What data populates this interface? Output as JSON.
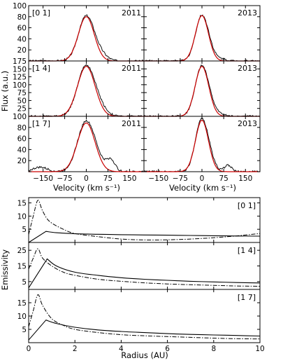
{
  "chart_data": [
    {
      "type": "line",
      "id": "line-profiles",
      "xlabel": "Velocity (km s⁻¹)",
      "ylabel": "Flux (a.u.)",
      "xlim": [
        -200,
        200
      ],
      "xticks": [
        -150,
        -75,
        0,
        75,
        150
      ],
      "years": [
        "2011",
        "2013"
      ],
      "rows": [
        {
          "label": "[0 1]",
          "ylim": [
            0,
            100
          ],
          "yticks": [
            0,
            20,
            40,
            60,
            80,
            100
          ],
          "panels": [
            {
              "year": "2011",
              "peak": 82,
              "width": 27,
              "model_peak": 80,
              "bumps": [
                [
                  60,
                  5,
                  20
                ]
              ]
            },
            {
              "year": "2013",
              "peak": 83,
              "width": 22,
              "model_peak": 82,
              "bumps": [
                [
                  70,
                  3,
                  15
                ]
              ]
            }
          ]
        },
        {
          "label": "[1 4]",
          "ylim": [
            0,
            175
          ],
          "yticks": [
            0,
            25,
            50,
            75,
            100,
            125,
            150,
            175
          ],
          "panels": [
            {
              "year": "2011",
              "peak": 162,
              "width": 30,
              "model_peak": 158,
              "bumps": [
                [
                  60,
                  5,
                  20
                ]
              ]
            },
            {
              "year": "2013",
              "peak": 160,
              "width": 23,
              "model_peak": 158,
              "bumps": [
                [
                  70,
                  4,
                  15
                ]
              ]
            }
          ]
        },
        {
          "label": "[1 7]",
          "ylim": [
            0,
            100
          ],
          "yticks": [
            0,
            20,
            40,
            60,
            80,
            100
          ],
          "panels": [
            {
              "year": "2011",
              "peak": 92,
              "width": 30,
              "model_peak": 88,
              "bumps": [
                [
                  85,
                  20,
                  15
                ],
                [
                  -160,
                  8,
                  25
                ]
              ]
            },
            {
              "year": "2013",
              "peak": 96,
              "width": 22,
              "model_peak": 93,
              "bumps": [
                [
                  90,
                  12,
                  12
                ]
              ]
            }
          ]
        }
      ],
      "series_colors": {
        "data": "#111111",
        "model": "#cc0000"
      }
    },
    {
      "type": "line",
      "id": "emissivity",
      "xlabel": "Radius (AU)",
      "ylabel": "Emissivity",
      "xlim": [
        0,
        10
      ],
      "xticks": [
        0,
        2,
        4,
        6,
        8,
        10
      ],
      "rows": [
        {
          "label": "[0 1]",
          "ylim": [
            0,
            17
          ],
          "yticks": [
            5,
            10,
            15
          ],
          "solid": [
            [
              0,
              0
            ],
            [
              0.75,
              4.2
            ],
            [
              1.2,
              3.7
            ],
            [
              2,
              3.3
            ],
            [
              3,
              3.1
            ],
            [
              4,
              2.95
            ],
            [
              5,
              2.85
            ],
            [
              6,
              2.75
            ],
            [
              7,
              2.65
            ],
            [
              8,
              2.55
            ],
            [
              9,
              2.45
            ],
            [
              10,
              2.4
            ]
          ],
          "dashed": [
            [
              0,
              3
            ],
            [
              0.2,
              10
            ],
            [
              0.4,
              16
            ],
            [
              0.6,
              12
            ],
            [
              0.9,
              8
            ],
            [
              1.5,
              5
            ],
            [
              2,
              3.4
            ],
            [
              3,
              2.2
            ],
            [
              4,
              1.3
            ],
            [
              5,
              0.95
            ],
            [
              6,
              1.0
            ],
            [
              7,
              1.3
            ],
            [
              8,
              1.8
            ],
            [
              9,
              2.5
            ],
            [
              10,
              3.4
            ]
          ]
        },
        {
          "label": "[1 4]",
          "ylim": [
            0,
            30
          ],
          "yticks": [
            5,
            15,
            25
          ],
          "solid": [
            [
              0,
              1
            ],
            [
              0.8,
              19.5
            ],
            [
              1.2,
              15
            ],
            [
              2,
              11
            ],
            [
              3,
              9
            ],
            [
              4,
              7.5
            ],
            [
              5,
              6.5
            ],
            [
              6,
              5.8
            ],
            [
              7,
              5.2
            ],
            [
              8,
              4.8
            ],
            [
              9,
              4.4
            ],
            [
              10,
              4.1
            ]
          ],
          "dashed": [
            [
              0,
              13
            ],
            [
              0.2,
              20
            ],
            [
              0.4,
              26
            ],
            [
              0.6,
              20
            ],
            [
              1.0,
              15
            ],
            [
              1.5,
              11
            ],
            [
              2,
              9
            ],
            [
              3,
              6.5
            ],
            [
              4,
              5.2
            ],
            [
              5,
              4.2
            ],
            [
              6,
              3.5
            ],
            [
              7,
              3.0
            ],
            [
              8,
              2.6
            ],
            [
              9,
              2.2
            ],
            [
              10,
              2.0
            ]
          ]
        },
        {
          "label": "[1 7]",
          "ylim": [
            0,
            20
          ],
          "yticks": [
            5,
            10,
            15
          ],
          "solid": [
            [
              0,
              1
            ],
            [
              0.75,
              8.5
            ],
            [
              1.2,
              7.2
            ],
            [
              2,
              5.8
            ],
            [
              3,
              4.8
            ],
            [
              4,
              4.2
            ],
            [
              5,
              3.8
            ],
            [
              6,
              3.4
            ],
            [
              7,
              3.1
            ],
            [
              8,
              2.9
            ],
            [
              9,
              2.7
            ],
            [
              10,
              2.5
            ]
          ],
          "dashed": [
            [
              0,
              6
            ],
            [
              0.2,
              12
            ],
            [
              0.4,
              18
            ],
            [
              0.6,
              14
            ],
            [
              1.0,
              9
            ],
            [
              1.5,
              6.5
            ],
            [
              2,
              5
            ],
            [
              3,
              3.8
            ],
            [
              4,
              3.0
            ],
            [
              5,
              2.6
            ],
            [
              6,
              2.3
            ],
            [
              7,
              2.0
            ],
            [
              8,
              1.7
            ],
            [
              9,
              1.5
            ],
            [
              10,
              1.4
            ]
          ]
        }
      ]
    }
  ]
}
